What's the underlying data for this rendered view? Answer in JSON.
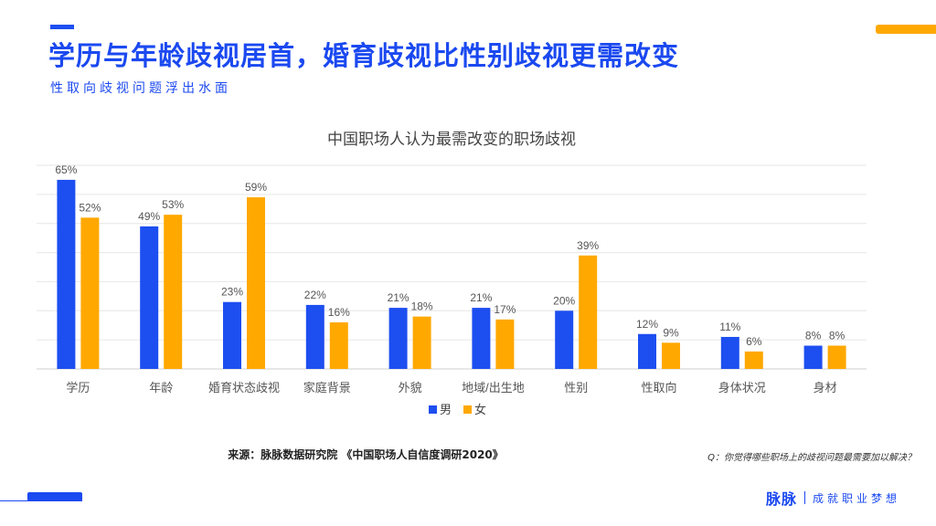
{
  "header": {
    "title": "学历与年龄歧视居首，婚育歧视比性别歧视更需改变",
    "subtitle": "性取向歧视问题浮出水面"
  },
  "colors": {
    "primary": "#1b49f0",
    "male": "#1d4ef0",
    "female": "#ffa800",
    "accent": "#ffa800"
  },
  "chart_data": {
    "type": "bar",
    "title": "中国职场人认为最需改变的职场歧视",
    "categories": [
      "学历",
      "年龄",
      "婚育状态歧视",
      "家庭背景",
      "外貌",
      "地域/出生地",
      "性别",
      "性取向",
      "身体状况",
      "身材"
    ],
    "series": [
      {
        "name": "男",
        "color": "#1d4ef0",
        "values": [
          65,
          49,
          23,
          22,
          21,
          21,
          20,
          12,
          11,
          8
        ]
      },
      {
        "name": "女",
        "color": "#ffa800",
        "values": [
          52,
          53,
          59,
          16,
          18,
          17,
          39,
          9,
          6,
          8
        ]
      }
    ],
    "value_suffix": "%",
    "ylim": [
      0,
      70
    ],
    "gridlines": true,
    "legend": "bottom-center"
  },
  "footer": {
    "source": "来源：脉脉数据研究院 《中国职场人自信度调研2020》",
    "question": "Q：你觉得哪些职场上的歧视问题最需要加以解决？",
    "brand_name": "脉脉",
    "brand_slogan": "成就职业梦想"
  }
}
